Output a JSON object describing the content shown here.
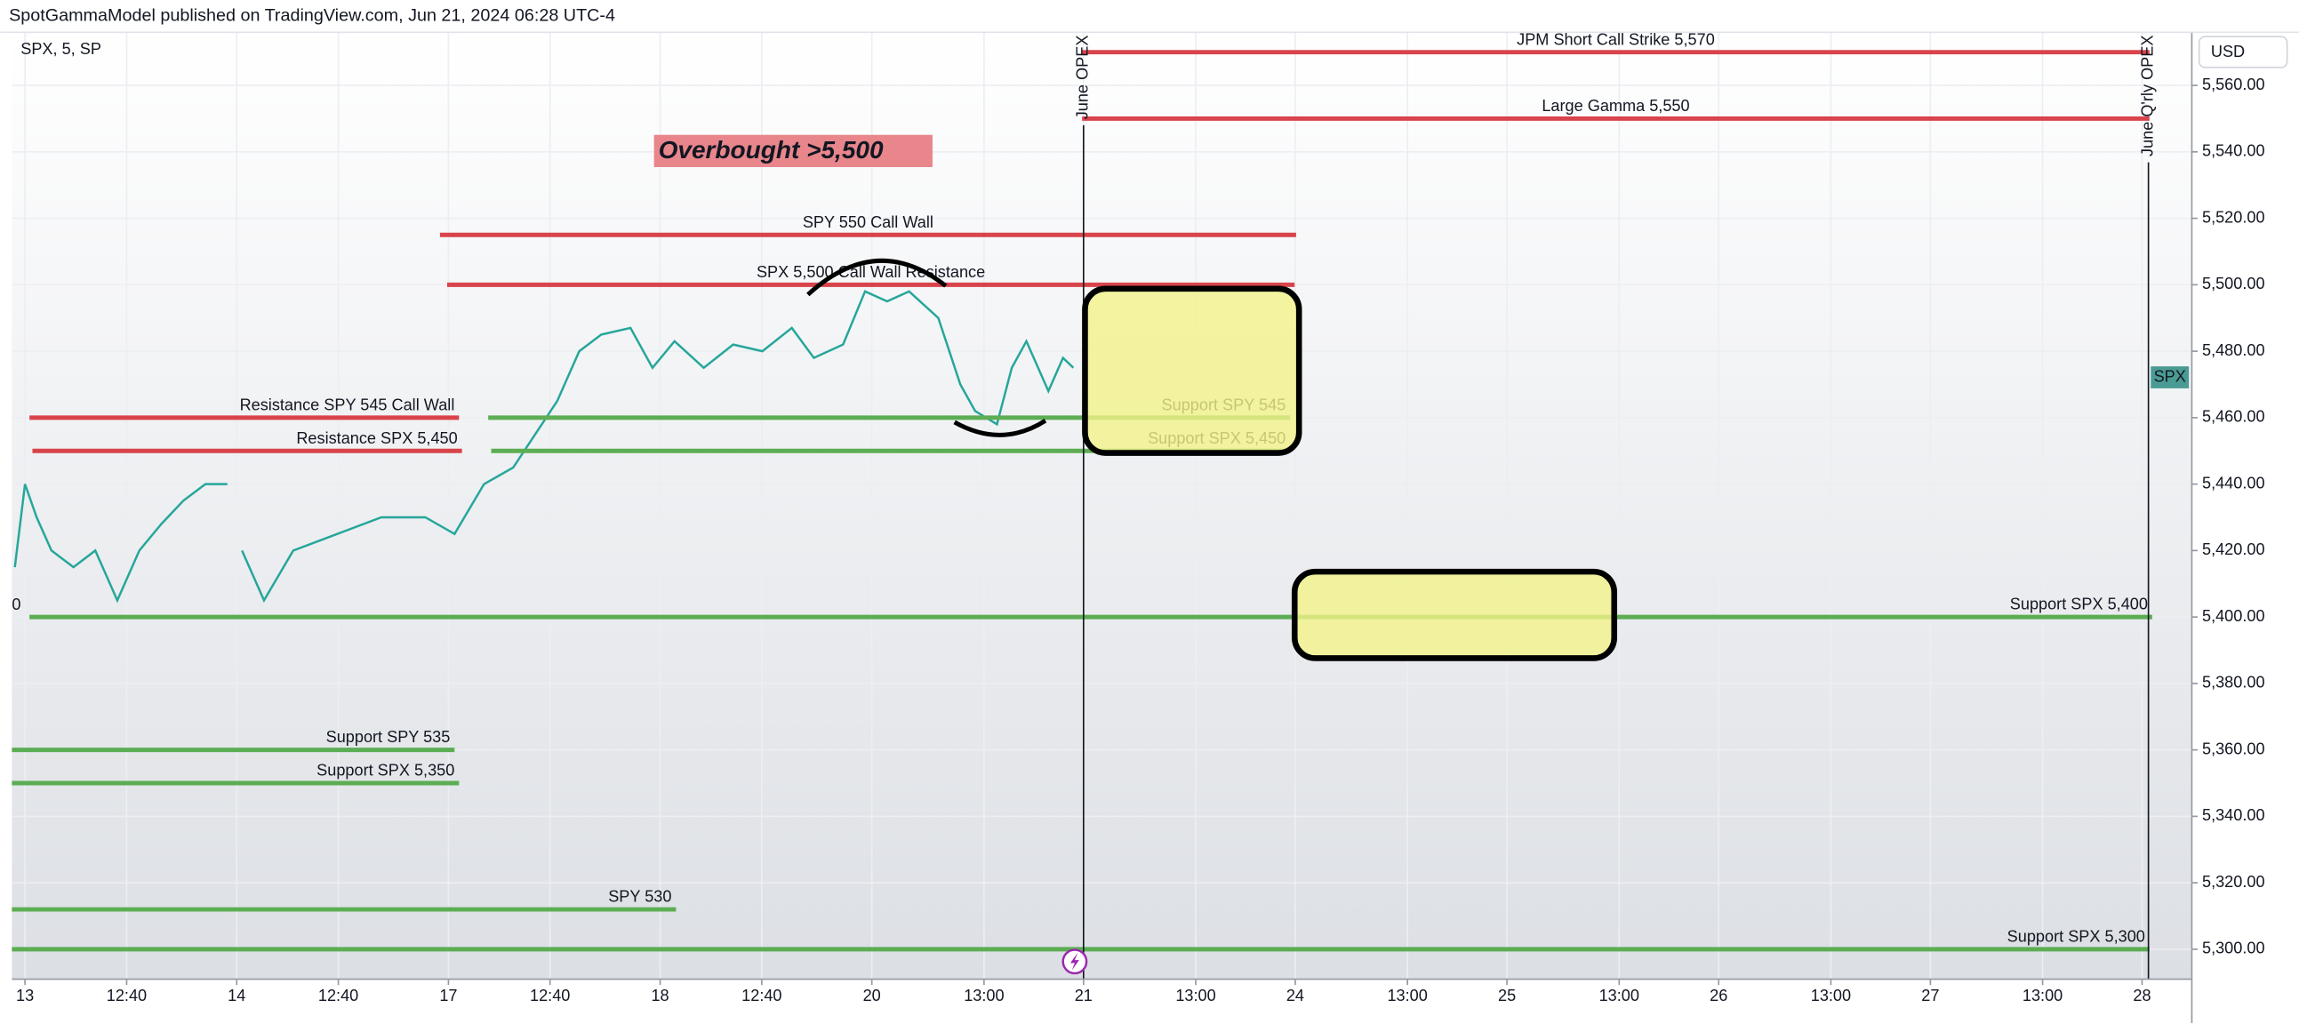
{
  "header": "SpotGammaModel published on TradingView.com, Jun 21, 2024 06:28 UTC-4",
  "chart_data": {
    "type": "line",
    "title": "SPX, 5, SP",
    "currency": "USD",
    "price_tag": "SPX",
    "left_label": "0",
    "note": "Overbought >5,500",
    "xlim": [
      -0.062,
      10.235
    ],
    "ylim": [
      5291,
      5576
    ],
    "grid": true,
    "xticks": [
      {
        "value": 0,
        "label": "13"
      },
      {
        "value": 0.48,
        "label": "12:40"
      },
      {
        "value": 1,
        "label": "14"
      },
      {
        "value": 1.48,
        "label": "12:40"
      },
      {
        "value": 2,
        "label": "17"
      },
      {
        "value": 2.48,
        "label": "12:40"
      },
      {
        "value": 3,
        "label": "18"
      },
      {
        "value": 3.48,
        "label": "12:40"
      },
      {
        "value": 4,
        "label": "20"
      },
      {
        "value": 4.53,
        "label": "13:00"
      },
      {
        "value": 5,
        "label": "21"
      },
      {
        "value": 5.53,
        "label": "13:00"
      },
      {
        "value": 6,
        "label": "24"
      },
      {
        "value": 6.53,
        "label": "13:00"
      },
      {
        "value": 7,
        "label": "25"
      },
      {
        "value": 7.53,
        "label": "13:00"
      },
      {
        "value": 8,
        "label": "26"
      },
      {
        "value": 8.53,
        "label": "13:00"
      },
      {
        "value": 9,
        "label": "27"
      },
      {
        "value": 9.53,
        "label": "13:00"
      },
      {
        "value": 10,
        "label": "28"
      }
    ],
    "yticks": [
      {
        "value": 5300,
        "label": "5,300.00"
      },
      {
        "value": 5320,
        "label": "5,320.00"
      },
      {
        "value": 5340,
        "label": "5,340.00"
      },
      {
        "value": 5360,
        "label": "5,360.00"
      },
      {
        "value": 5380,
        "label": "5,380.00"
      },
      {
        "value": 5400,
        "label": "5,400.00"
      },
      {
        "value": 5420,
        "label": "5,420.00"
      },
      {
        "value": 5440,
        "label": "5,440.00"
      },
      {
        "value": 5460,
        "label": "5,460.00"
      },
      {
        "value": 5480,
        "label": "5,480.00"
      },
      {
        "value": 5500,
        "label": "5,500.00"
      },
      {
        "value": 5520,
        "label": "5,520.00"
      },
      {
        "value": 5540,
        "label": "5,540.00"
      },
      {
        "value": 5560,
        "label": "5,560.00"
      }
    ],
    "series": [
      {
        "name": "SPX",
        "color": "#26a69a",
        "x": [
          -0.048,
          0,
          0.055,
          0.125,
          0.229,
          0.332,
          0.436,
          0.54,
          0.644,
          0.748,
          0.852,
          0.956,
          0.97,
          1.025,
          1.129,
          1.267,
          1.475,
          1.683,
          1.891,
          2.029,
          2.168,
          2.306,
          2.41,
          2.514,
          2.618,
          2.722,
          2.86,
          2.964,
          3.068,
          3.206,
          3.345,
          3.483,
          3.622,
          3.726,
          3.864,
          3.968,
          4.072,
          4.176,
          4.314,
          4.418,
          4.488,
          4.591,
          4.661,
          4.73,
          4.834,
          4.903,
          4.952
        ],
        "values": [
          5415,
          5440,
          5430,
          5420,
          5415,
          5420,
          5405,
          5420,
          5428,
          5435,
          5440,
          5440,
          null,
          5420,
          5405,
          5420,
          5425,
          5430,
          5430,
          5425,
          5440,
          5445,
          5455,
          5465,
          5480,
          5485,
          5487,
          5475,
          5483,
          5475,
          5482,
          5480,
          5487,
          5478,
          5482,
          5498,
          5495,
          5498,
          5490,
          5470,
          5462,
          5458,
          5475,
          5483,
          5468,
          5478,
          5475
        ]
      }
    ],
    "levels": [
      {
        "label": "JPM Short Call Strike 5,570",
        "value": 5570,
        "x": [
          4.993,
          10.035
        ],
        "color": "#d9434b",
        "align": "center"
      },
      {
        "label": "Large Gamma 5,550",
        "value": 5550,
        "x": [
          4.993,
          10.035
        ],
        "color": "#d9434b",
        "align": "center"
      },
      {
        "label": "SPY 550 Call Wall",
        "value": 5515,
        "x": [
          1.96,
          6.004
        ],
        "color": "#d9434b",
        "align": "center"
      },
      {
        "label": "SPX 5,500 Call Wall Resistance",
        "value": 5500,
        "x": [
          1.994,
          5.997
        ],
        "color": "#d9434b",
        "align": "center"
      },
      {
        "label": "Resistance SPY 545 Call Wall",
        "value": 5460,
        "x": [
          0.021,
          2.05
        ],
        "color": "#d9434b",
        "align": "end"
      },
      {
        "label": "Resistance SPX  5,450",
        "value": 5450,
        "x": [
          0.035,
          2.064
        ],
        "color": "#d9434b",
        "align": "end"
      },
      {
        "label": "Support SPY 545",
        "value": 5460,
        "x": [
          2.188,
          5.976
        ],
        "color": "#5cad53",
        "align": "end"
      },
      {
        "label": "Support SPX 5,450",
        "value": 5450,
        "x": [
          2.202,
          5.976
        ],
        "color": "#5cad53",
        "align": "end"
      },
      {
        "label": "Support SPX 5,400",
        "value": 5400,
        "x": [
          0.021,
          10.048
        ],
        "color": "#5cad53",
        "align": "end"
      },
      {
        "label": "Support SPY 535",
        "value": 5360,
        "x": [
          -0.062,
          2.029
        ],
        "color": "#5cad53",
        "align": "end"
      },
      {
        "label": "Support SPX 5,350",
        "value": 5350,
        "x": [
          -0.062,
          2.05
        ],
        "color": "#5cad53",
        "align": "end"
      },
      {
        "label": "SPY 530",
        "value": 5312,
        "x": [
          -0.062,
          3.075
        ],
        "color": "#5cad53",
        "align": "end"
      },
      {
        "label": "Support SPX 5,300",
        "value": 5300,
        "x": [
          -0.062,
          10.035
        ],
        "color": "#5cad53",
        "align": "end"
      }
    ],
    "events": [
      {
        "label": "June OPEX",
        "x": 5
      },
      {
        "label": "June Q'rly OPEX",
        "x": 10.03
      }
    ]
  }
}
